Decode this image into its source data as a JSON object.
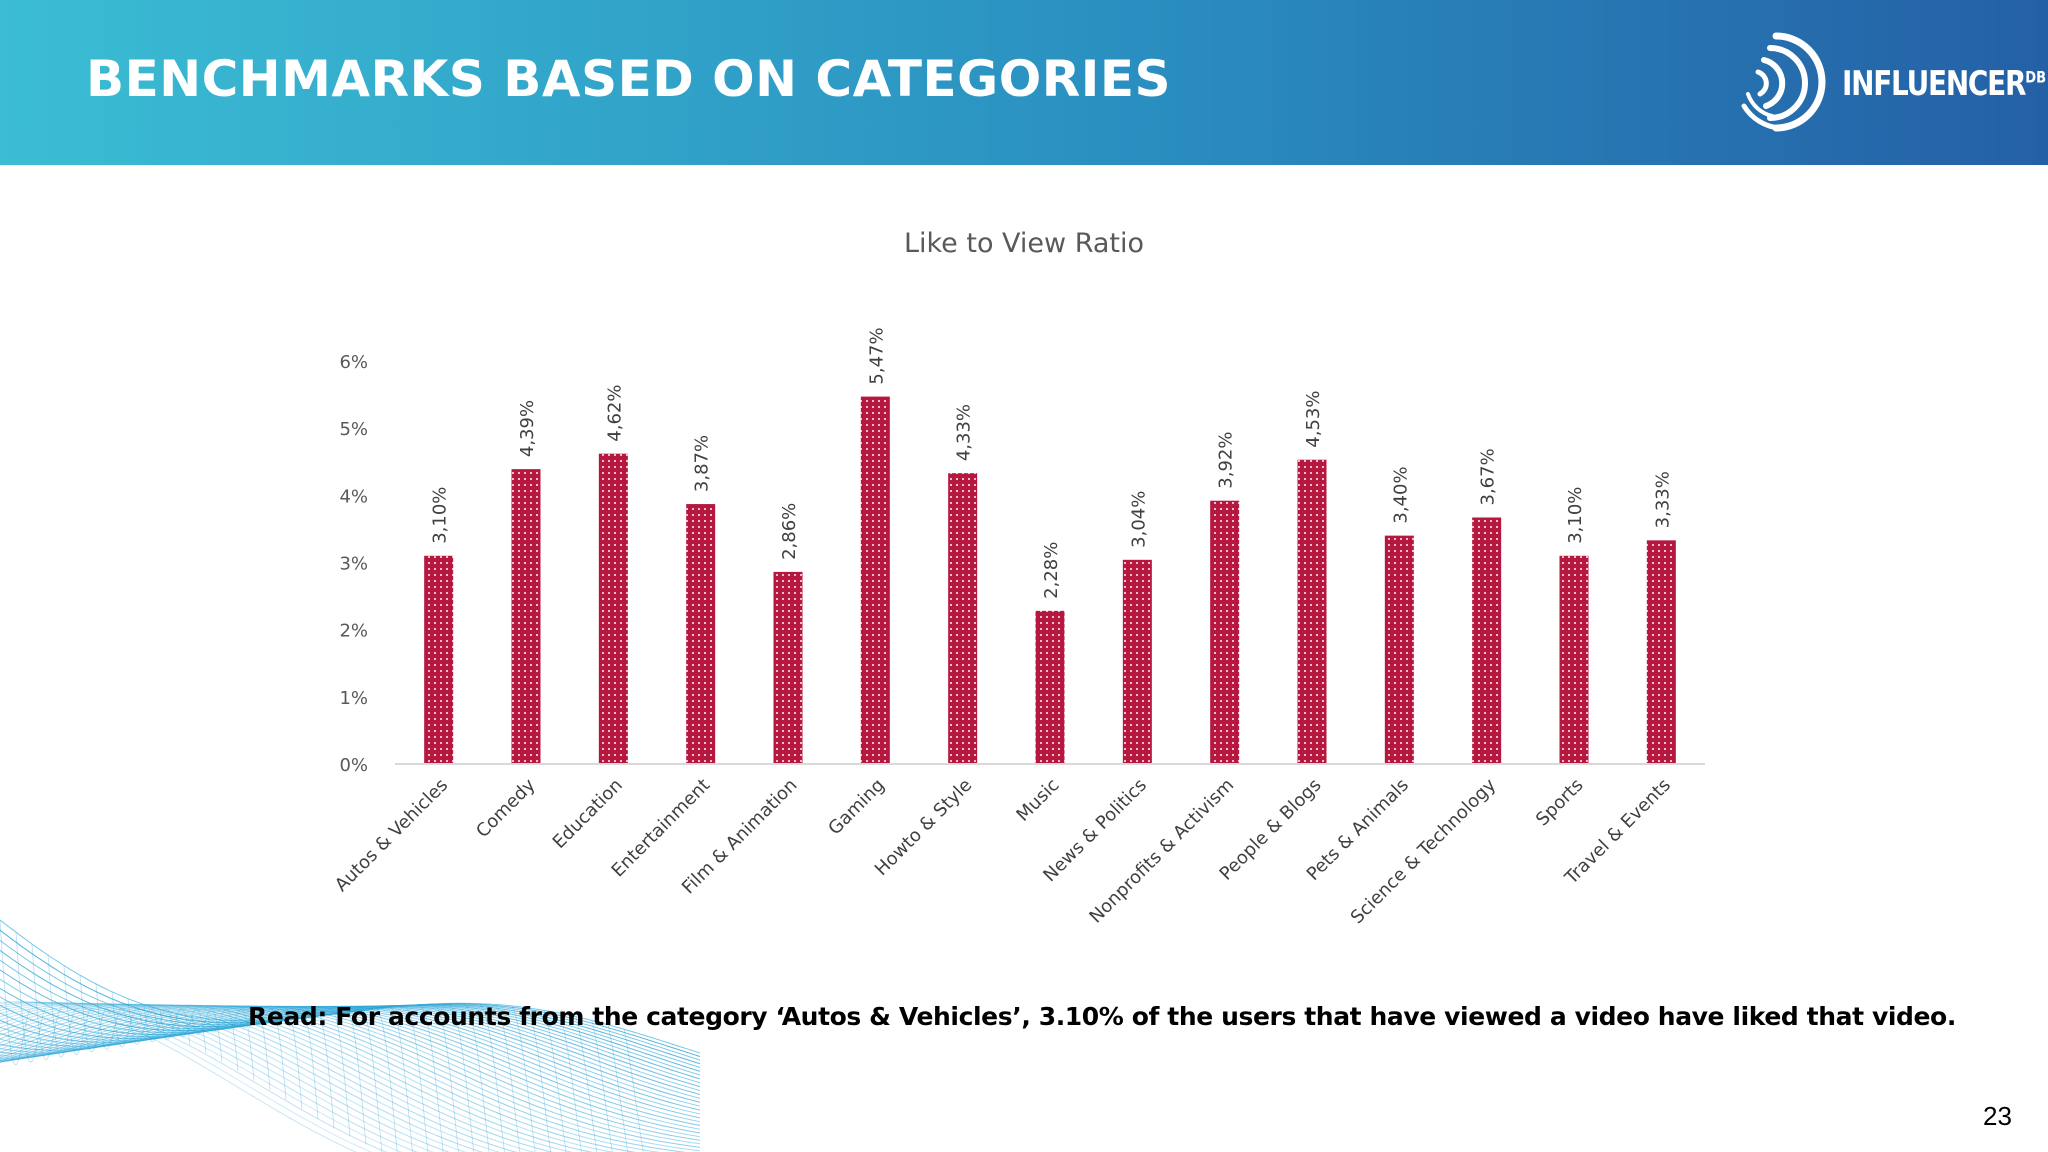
{
  "header": {
    "title": "BENCHMARKS BASED ON CATEGORIES",
    "brand": {
      "name": "INFLUENCER",
      "suffix": "DB"
    }
  },
  "chart_data": {
    "type": "bar",
    "title": "Like to View Ratio",
    "xlabel": "",
    "ylabel": "",
    "ylim": [
      0,
      6
    ],
    "y_ticks": [
      "0%",
      "1%",
      "2%",
      "3%",
      "4%",
      "5%",
      "6%"
    ],
    "categories": [
      "Autos & Vehicles",
      "Comedy",
      "Education",
      "Entertainment",
      "Film & Animation",
      "Gaming",
      "Howto & Style",
      "Music",
      "News & Politics",
      "Nonprofits & Activism",
      "People & Blogs",
      "Pets & Animals",
      "Science & Technology",
      "Sports",
      "Travel & Events"
    ],
    "values": [
      3.1,
      4.39,
      4.62,
      3.87,
      2.86,
      5.47,
      4.33,
      2.28,
      3.04,
      3.92,
      4.53,
      3.4,
      3.67,
      3.1,
      3.33
    ],
    "data_labels": [
      "3,10%",
      "4,39%",
      "4,62%",
      "3,87%",
      "2,86%",
      "5,47%",
      "4,33%",
      "2,28%",
      "3,04%",
      "3,92%",
      "4,53%",
      "3,40%",
      "3,67%",
      "3,10%",
      "3,33%"
    ],
    "bar_color": "#b5173f",
    "grid": false,
    "legend": "none"
  },
  "footer": {
    "note": "Read: For accounts from the category ‘Autos & Vehicles’, 3.10% of the users that have viewed a video have liked that video.",
    "page_number": "23"
  }
}
